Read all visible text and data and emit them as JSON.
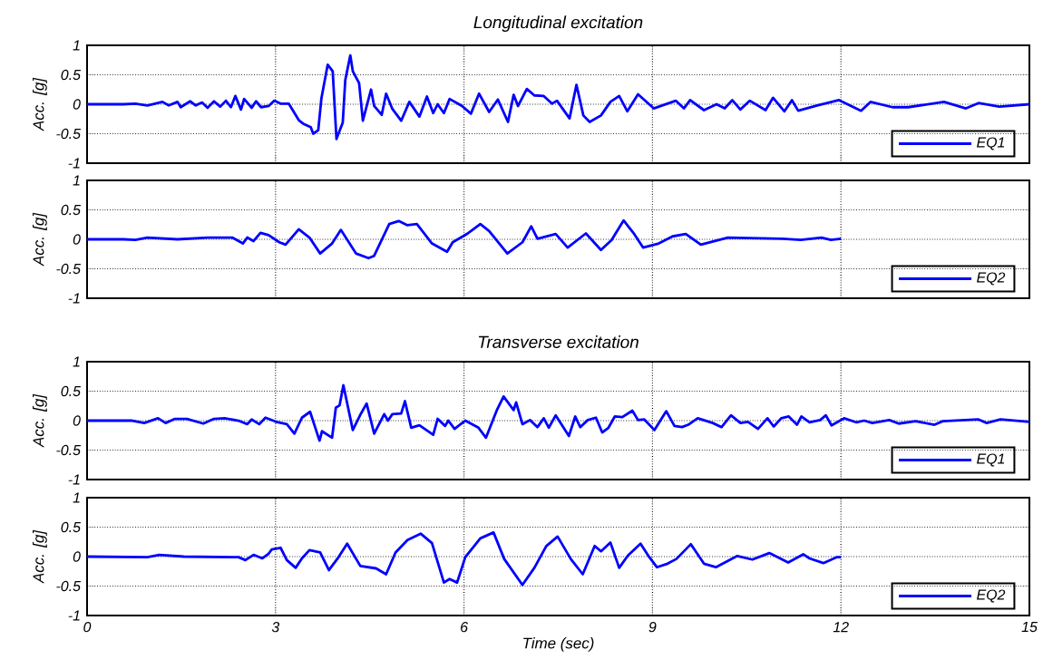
{
  "chart_data": [
    {
      "type": "line",
      "title": "Longitudinal excitation",
      "ylabel": "Acc. [g]",
      "xlim": [
        0,
        15
      ],
      "ylim": [
        -1,
        1
      ],
      "xticks": [
        0,
        3,
        6,
        9,
        12,
        15
      ],
      "yticks": [
        -1,
        -0.5,
        0,
        0.5,
        1
      ],
      "grid": true,
      "legend": "bottom right",
      "tick_labels": "y",
      "series": [
        {
          "name": "EQ1",
          "color": "#0000ff",
          "x": [
            0,
            0.58,
            0.77,
            0.96,
            1.2,
            1.3,
            1.44,
            1.49,
            1.64,
            1.73,
            1.83,
            1.92,
            2.02,
            2.12,
            2.21,
            2.29,
            2.36,
            2.45,
            2.5,
            2.62,
            2.69,
            2.77,
            2.89,
            2.98,
            3.08,
            3.21,
            3.37,
            3.44,
            3.56,
            3.6,
            3.68,
            3.73,
            3.83,
            3.91,
            3.97,
            4.07,
            4.11,
            4.19,
            4.23,
            4.33,
            4.39,
            4.52,
            4.57,
            4.69,
            4.76,
            4.86,
            5.0,
            5.13,
            5.29,
            5.41,
            5.51,
            5.58,
            5.68,
            5.77,
            5.97,
            6.11,
            6.24,
            6.4,
            6.54,
            6.7,
            6.79,
            6.86,
            7.0,
            7.12,
            7.27,
            7.4,
            7.48,
            7.68,
            7.79,
            7.9,
            8.0,
            8.18,
            8.33,
            8.47,
            8.6,
            8.77,
            9.02,
            9.37,
            9.5,
            9.6,
            9.82,
            10.02,
            10.15,
            10.27,
            10.4,
            10.55,
            10.8,
            10.92,
            11.1,
            11.22,
            11.32,
            11.62,
            11.97,
            12.32,
            12.47,
            12.82,
            13.07,
            13.64,
            13.99,
            14.19,
            14.52,
            15
          ],
          "values": [
            0,
            0,
            0.01,
            -0.02,
            0.04,
            -0.02,
            0.04,
            -0.05,
            0.05,
            -0.02,
            0.03,
            -0.06,
            0.05,
            -0.04,
            0.06,
            -0.05,
            0.14,
            -0.09,
            0.09,
            -0.06,
            0.05,
            -0.05,
            -0.03,
            0.06,
            0.01,
            0.01,
            -0.27,
            -0.33,
            -0.39,
            -0.5,
            -0.44,
            0.1,
            0.67,
            0.56,
            -0.59,
            -0.31,
            0.41,
            0.83,
            0.56,
            0.36,
            -0.28,
            0.25,
            -0.03,
            -0.18,
            0.18,
            -0.08,
            -0.28,
            0.04,
            -0.21,
            0.13,
            -0.15,
            0,
            -0.15,
            0.09,
            -0.03,
            -0.16,
            0.18,
            -0.13,
            0.08,
            -0.3,
            0.16,
            -0.03,
            0.26,
            0.15,
            0.14,
            0.01,
            0.06,
            -0.24,
            0.33,
            -0.19,
            -0.3,
            -0.19,
            0.04,
            0.14,
            -0.12,
            0.17,
            -0.07,
            0.06,
            -0.07,
            0.07,
            -0.1,
            0,
            -0.07,
            0.07,
            -0.09,
            0.06,
            -0.1,
            0.11,
            -0.12,
            0.07,
            -0.11,
            -0.02,
            0.07,
            -0.11,
            0.04,
            -0.05,
            -0.05,
            0.04,
            -0.07,
            0.02,
            -0.04,
            0
          ]
        }
      ]
    },
    {
      "type": "line",
      "ylabel": "Acc. [g]",
      "xlim": [
        0,
        15
      ],
      "ylim": [
        -1,
        1
      ],
      "xticks": [
        0,
        3,
        6,
        9,
        12,
        15
      ],
      "yticks": [
        -1,
        -0.5,
        0,
        0.5,
        1
      ],
      "grid": true,
      "legend": "bottom right",
      "tick_labels": "y",
      "series": [
        {
          "name": "EQ2",
          "color": "#0000ff",
          "x": [
            0,
            0.58,
            0.77,
            0.96,
            1.44,
            1.92,
            2.31,
            2.48,
            2.55,
            2.65,
            2.76,
            2.89,
            3.06,
            3.16,
            3.37,
            3.54,
            3.71,
            3.9,
            4.04,
            4.28,
            4.48,
            4.57,
            4.81,
            4.96,
            5.1,
            5.25,
            5.49,
            5.73,
            5.82,
            6.06,
            6.26,
            6.4,
            6.69,
            6.93,
            7.07,
            7.17,
            7.46,
            7.65,
            7.94,
            8.18,
            8.35,
            8.54,
            8.71,
            8.85,
            9.1,
            9.32,
            9.53,
            9.77,
            10.2,
            11.07,
            11.36,
            11.69,
            11.84,
            12.0
          ],
          "values": [
            0,
            0,
            -0.01,
            0.03,
            0,
            0.03,
            0.03,
            -0.07,
            0.03,
            -0.03,
            0.11,
            0.07,
            -0.05,
            -0.09,
            0.17,
            0.03,
            -0.24,
            -0.07,
            0.16,
            -0.24,
            -0.32,
            -0.28,
            0.26,
            0.31,
            0.24,
            0.26,
            -0.07,
            -0.21,
            -0.05,
            0.1,
            0.26,
            0.14,
            -0.24,
            -0.05,
            0.22,
            0.01,
            0.09,
            -0.14,
            0.1,
            -0.18,
            -0.01,
            0.32,
            0.09,
            -0.14,
            -0.07,
            0.05,
            0.09,
            -0.09,
            0.03,
            0.01,
            -0.01,
            0.03,
            -0.01,
            0.01
          ]
        }
      ]
    },
    {
      "type": "line",
      "title": "Transverse excitation",
      "ylabel": "Acc. [g]",
      "xlim": [
        0,
        15
      ],
      "ylim": [
        -1,
        1
      ],
      "xticks": [
        0,
        3,
        6,
        9,
        12,
        15
      ],
      "yticks": [
        -1,
        -0.5,
        0,
        0.5,
        1
      ],
      "grid": true,
      "legend": "bottom right",
      "tick_labels": "y",
      "series": [
        {
          "name": "EQ1",
          "color": "#0000ff",
          "x": [
            0,
            0.48,
            0.72,
            0.91,
            1.13,
            1.25,
            1.4,
            1.59,
            1.85,
            2.02,
            2.19,
            2.41,
            2.55,
            2.62,
            2.74,
            2.84,
            3.01,
            3.18,
            3.3,
            3.42,
            3.55,
            3.7,
            3.74,
            3.9,
            3.96,
            4.02,
            4.08,
            4.23,
            4.36,
            4.45,
            4.57,
            4.73,
            4.79,
            4.86,
            5.0,
            5.06,
            5.16,
            5.29,
            5.51,
            5.58,
            5.7,
            5.75,
            5.85,
            6.02,
            6.23,
            6.35,
            6.52,
            6.63,
            6.79,
            6.83,
            6.93,
            7.05,
            7.17,
            7.27,
            7.35,
            7.46,
            7.67,
            7.77,
            7.85,
            7.97,
            8.1,
            8.2,
            8.3,
            8.4,
            8.52,
            8.68,
            8.77,
            8.87,
            9.03,
            9.22,
            9.35,
            9.47,
            9.57,
            9.72,
            9.96,
            10.1,
            10.25,
            10.4,
            10.52,
            10.68,
            10.83,
            10.93,
            11.05,
            11.17,
            11.3,
            11.37,
            11.5,
            11.67,
            11.76,
            11.85,
            12.05,
            12.25,
            12.37,
            12.5,
            12.77,
            12.92,
            13.19,
            13.49,
            13.62,
            14.19,
            14.32,
            14.54,
            15
          ],
          "values": [
            0,
            0,
            0,
            -0.04,
            0.04,
            -0.04,
            0.03,
            0.03,
            -0.05,
            0.03,
            0.04,
            0,
            -0.06,
            0.02,
            -0.06,
            0.05,
            -0.02,
            -0.06,
            -0.22,
            0.05,
            0.15,
            -0.34,
            -0.18,
            -0.29,
            0.22,
            0.26,
            0.6,
            -0.16,
            0.12,
            0.29,
            -0.22,
            0.11,
            0,
            0.11,
            0.12,
            0.33,
            -0.12,
            -0.08,
            -0.24,
            0.03,
            -0.09,
            0,
            -0.14,
            0,
            -0.12,
            -0.29,
            0.17,
            0.41,
            0.18,
            0.31,
            -0.06,
            0.01,
            -0.11,
            0.04,
            -0.12,
            0.09,
            -0.26,
            0.07,
            -0.11,
            0.01,
            0.05,
            -0.2,
            -0.12,
            0.07,
            0.06,
            0.17,
            0.01,
            0.02,
            -0.16,
            0.16,
            -0.09,
            -0.11,
            -0.07,
            0.04,
            -0.04,
            -0.11,
            0.09,
            -0.04,
            -0.02,
            -0.14,
            0.04,
            -0.1,
            0.04,
            0.07,
            -0.07,
            0.07,
            -0.03,
            0.01,
            0.09,
            -0.08,
            0.04,
            -0.03,
            0,
            -0.04,
            0.01,
            -0.05,
            -0.01,
            -0.07,
            -0.01,
            0.02,
            -0.04,
            0.02,
            -0.02
          ]
        }
      ]
    },
    {
      "type": "line",
      "xlabel": "Time (sec)",
      "ylabel": "Acc. [g]",
      "xlim": [
        0,
        15
      ],
      "ylim": [
        -1,
        1
      ],
      "xticks": [
        0,
        3,
        6,
        9,
        12,
        15
      ],
      "yticks": [
        -1,
        -0.5,
        0,
        0.5,
        1
      ],
      "grid": true,
      "legend": "bottom right",
      "series": [
        {
          "name": "EQ2",
          "color": "#0000ff",
          "x": [
            0,
            0.96,
            1.15,
            1.54,
            2.41,
            2.52,
            2.65,
            2.79,
            2.89,
            2.94,
            3.08,
            3.18,
            3.32,
            3.42,
            3.54,
            3.71,
            3.85,
            3.99,
            4.14,
            4.35,
            4.6,
            4.76,
            4.91,
            5.1,
            5.31,
            5.49,
            5.68,
            5.77,
            5.89,
            6.02,
            6.26,
            6.47,
            6.64,
            6.93,
            7.12,
            7.31,
            7.49,
            7.7,
            7.89,
            8.08,
            8.18,
            8.33,
            8.47,
            8.61,
            8.81,
            8.95,
            9.07,
            9.24,
            9.38,
            9.61,
            9.82,
            10.01,
            10.35,
            10.59,
            10.86,
            11.16,
            11.4,
            11.5,
            11.72,
            11.93,
            12.0
          ],
          "values": [
            0,
            -0.01,
            0.03,
            0,
            -0.01,
            -0.06,
            0.03,
            -0.03,
            0.05,
            0.12,
            0.15,
            -0.06,
            -0.19,
            -0.03,
            0.11,
            0.07,
            -0.23,
            -0.03,
            0.22,
            -0.16,
            -0.2,
            -0.3,
            0.07,
            0.28,
            0.39,
            0.23,
            -0.44,
            -0.38,
            -0.44,
            -0.01,
            0.31,
            0.41,
            -0.04,
            -0.48,
            -0.19,
            0.18,
            0.34,
            -0.04,
            -0.3,
            0.18,
            0.09,
            0.24,
            -0.19,
            0.02,
            0.22,
            -0.01,
            -0.18,
            -0.12,
            -0.04,
            0.21,
            -0.12,
            -0.18,
            0.01,
            -0.05,
            0.06,
            -0.1,
            0.04,
            -0.03,
            -0.11,
            -0.01,
            -0.01
          ]
        }
      ]
    }
  ]
}
